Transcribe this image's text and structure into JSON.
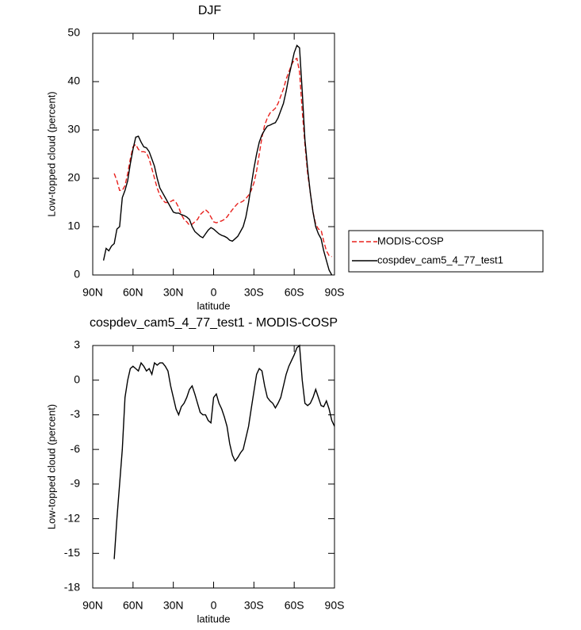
{
  "chart_data": [
    {
      "type": "line",
      "title": "DJF",
      "xlabel": "latitude",
      "ylabel": "Low-topped cloud (percent)",
      "x": [
        82,
        80,
        78,
        76,
        74,
        72,
        70,
        68,
        66,
        64,
        62,
        60,
        58,
        56,
        54,
        52,
        50,
        48,
        46,
        44,
        42,
        40,
        38,
        36,
        34,
        32,
        30,
        28,
        26,
        24,
        22,
        20,
        18,
        16,
        14,
        12,
        10,
        8,
        6,
        4,
        2,
        0,
        -2,
        -4,
        -6,
        -8,
        -10,
        -12,
        -14,
        -16,
        -18,
        -20,
        -22,
        -24,
        -26,
        -28,
        -30,
        -32,
        -34,
        -36,
        -38,
        -40,
        -42,
        -44,
        -46,
        -48,
        -50,
        -52,
        -54,
        -56,
        -58,
        -60,
        -62,
        -64,
        -66,
        -68,
        -70,
        -72,
        -74,
        -76,
        -78,
        -80,
        -82,
        -84,
        -86,
        -88
      ],
      "series": [
        {
          "name": "MODIS-COSP",
          "color": "#e8201c",
          "line_style": "dashed",
          "values": [
            null,
            null,
            null,
            null,
            21,
            19.5,
            17.5,
            17.5,
            18.5,
            21,
            24,
            26.5,
            27,
            26,
            25.5,
            25.5,
            25.3,
            24,
            22,
            20,
            18,
            16.5,
            15.5,
            15,
            15,
            15.2,
            15.5,
            15,
            14,
            12.5,
            11.5,
            11,
            10.3,
            10.5,
            11,
            11.5,
            12.5,
            13,
            13.5,
            13,
            12,
            11,
            10.8,
            11,
            11.2,
            11.5,
            12,
            12.8,
            13.5,
            14.2,
            14.8,
            15,
            15.3,
            15.8,
            16.5,
            17.5,
            19,
            21.5,
            25,
            28.5,
            31,
            32.5,
            33.5,
            34,
            34.5,
            35.5,
            37,
            38.5,
            40.5,
            42,
            43.5,
            44.5,
            44.8,
            42,
            34,
            27,
            21,
            17,
            13,
            10.5,
            9.5,
            9.3,
            7,
            5,
            4,
            3.8
          ]
        },
        {
          "name": "cospdev_cam5_4_77_test1",
          "color": "#000000",
          "line_style": "solid",
          "values": [
            3,
            5.5,
            5,
            6,
            6.5,
            9.5,
            10,
            16,
            17.5,
            19.5,
            23,
            26,
            28.5,
            28.7,
            27.5,
            26.5,
            26.3,
            25.5,
            24,
            22.5,
            20,
            18,
            17,
            16,
            15,
            14,
            13,
            12.8,
            12.8,
            12.5,
            12.3,
            12,
            11.5,
            10,
            9,
            8.5,
            8,
            7.7,
            8.5,
            9.3,
            9.8,
            9.5,
            9,
            8.5,
            8.2,
            8,
            7.7,
            7.2,
            7,
            7.5,
            8,
            9,
            10,
            12,
            15,
            18.5,
            22,
            25,
            27.5,
            29,
            30,
            30.8,
            31,
            31.3,
            31.5,
            32.5,
            34,
            35.5,
            38,
            41,
            43.5,
            46,
            47.5,
            47,
            38,
            28,
            22,
            17,
            13,
            10,
            8.5,
            7.5,
            5,
            3,
            1,
            0
          ]
        }
      ],
      "xlim": [
        90,
        -90
      ],
      "xticks": [
        {
          "value": 90,
          "label": "90N"
        },
        {
          "value": 60,
          "label": "60N"
        },
        {
          "value": 30,
          "label": "30N"
        },
        0,
        {
          "value": -30,
          "label": "30S"
        },
        {
          "value": -60,
          "label": "60S"
        },
        {
          "value": -90,
          "label": "90S"
        }
      ],
      "ylim": [
        0,
        50
      ],
      "yticks": [
        0,
        10,
        20,
        30,
        40,
        50
      ],
      "legend": "right"
    },
    {
      "type": "line",
      "title": "cospdev_cam5_4_77_test1 - MODIS-COSP",
      "xlabel": "latitude",
      "ylabel": "Low-topped cloud (percent)",
      "x": [
        74,
        72,
        70,
        68,
        66,
        64,
        62,
        60,
        58,
        56,
        54,
        52,
        50,
        48,
        46,
        44,
        42,
        40,
        38,
        36,
        34,
        32,
        30,
        28,
        26,
        24,
        22,
        20,
        18,
        16,
        14,
        12,
        10,
        8,
        6,
        4,
        2,
        0,
        -2,
        -4,
        -6,
        -8,
        -10,
        -12,
        -14,
        -16,
        -18,
        -20,
        -22,
        -24,
        -26,
        -28,
        -30,
        -32,
        -34,
        -36,
        -38,
        -40,
        -42,
        -44,
        -46,
        -48,
        -50,
        -52,
        -54,
        -56,
        -58,
        -60,
        -62,
        -64,
        -66,
        -68,
        -70,
        -72,
        -74,
        -76,
        -78,
        -80,
        -82,
        -84,
        -86,
        -88,
        -90
      ],
      "values": [
        -15.5,
        -12,
        -9,
        -6,
        -1.5,
        0,
        1,
        1.2,
        1,
        0.8,
        1.5,
        1.2,
        0.8,
        1,
        0.5,
        1.5,
        1.3,
        1.5,
        1.5,
        1.2,
        0.8,
        -0.5,
        -1.5,
        -2.5,
        -3,
        -2.3,
        -2,
        -1.5,
        -0.8,
        -0.5,
        -1.2,
        -2,
        -2.8,
        -3,
        -3,
        -3.5,
        -3.7,
        -1.5,
        -1.2,
        -2,
        -2.5,
        -3.2,
        -4,
        -5.5,
        -6.5,
        -7,
        -6.7,
        -6.3,
        -6,
        -5,
        -4,
        -2.5,
        -1,
        0.5,
        1,
        0.8,
        -0.5,
        -1.5,
        -1.8,
        -2,
        -2.4,
        -2,
        -1.5,
        -0.5,
        0.5,
        1.2,
        1.7,
        2.2,
        2.8,
        3,
        0,
        -2,
        -2.2,
        -2,
        -1.5,
        -0.8,
        -1.5,
        -2.2,
        -2.3,
        -1.8,
        -2.5,
        -3.5,
        -4
      ],
      "color": "#000000",
      "xlim": [
        90,
        -90
      ],
      "xticks": [
        {
          "value": 90,
          "label": "90N"
        },
        {
          "value": 60,
          "label": "60N"
        },
        {
          "value": 30,
          "label": "30N"
        },
        0,
        {
          "value": -30,
          "label": "30S"
        },
        {
          "value": -60,
          "label": "60S"
        },
        {
          "value": -90,
          "label": "90S"
        }
      ],
      "ylim": [
        -18,
        3
      ],
      "yticks": [
        -18,
        -15,
        -12,
        -9,
        -6,
        -3,
        0,
        3
      ]
    }
  ]
}
